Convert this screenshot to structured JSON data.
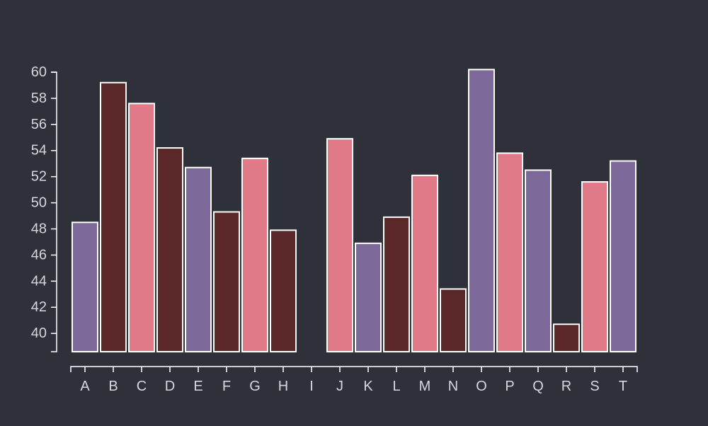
{
  "chart_data": {
    "type": "bar",
    "title": "",
    "xlabel": "",
    "ylabel": "",
    "categories": [
      "A",
      "B",
      "C",
      "D",
      "E",
      "F",
      "G",
      "H",
      "I",
      "J",
      "K",
      "L",
      "M",
      "N",
      "O",
      "P",
      "Q",
      "R",
      "S",
      "T"
    ],
    "values": [
      48.5,
      59.2,
      57.6,
      54.2,
      52.7,
      49.3,
      53.4,
      47.9,
      null,
      54.9,
      46.9,
      48.9,
      52.1,
      43.4,
      60.2,
      53.8,
      52.5,
      40.7,
      51.6,
      53.2
    ],
    "y_ticks": [
      40,
      42,
      44,
      46,
      48,
      50,
      52,
      54,
      56,
      58,
      60
    ],
    "ylim": [
      38.6,
      60.0
    ],
    "grid": false,
    "legend": "none",
    "palette": {
      "background": "#2e3139",
      "purple": "#7e6a9a",
      "maroon": "#5a2828",
      "pink": "#e07a89",
      "axis": "#ffffff",
      "text": "#d6d6dc"
    },
    "bar_colors": [
      "purple",
      "maroon",
      "pink",
      "maroon",
      "purple",
      "maroon",
      "pink",
      "maroon",
      "none",
      "pink",
      "purple",
      "maroon",
      "pink",
      "maroon",
      "purple",
      "pink",
      "purple",
      "maroon",
      "pink",
      "purple"
    ]
  }
}
